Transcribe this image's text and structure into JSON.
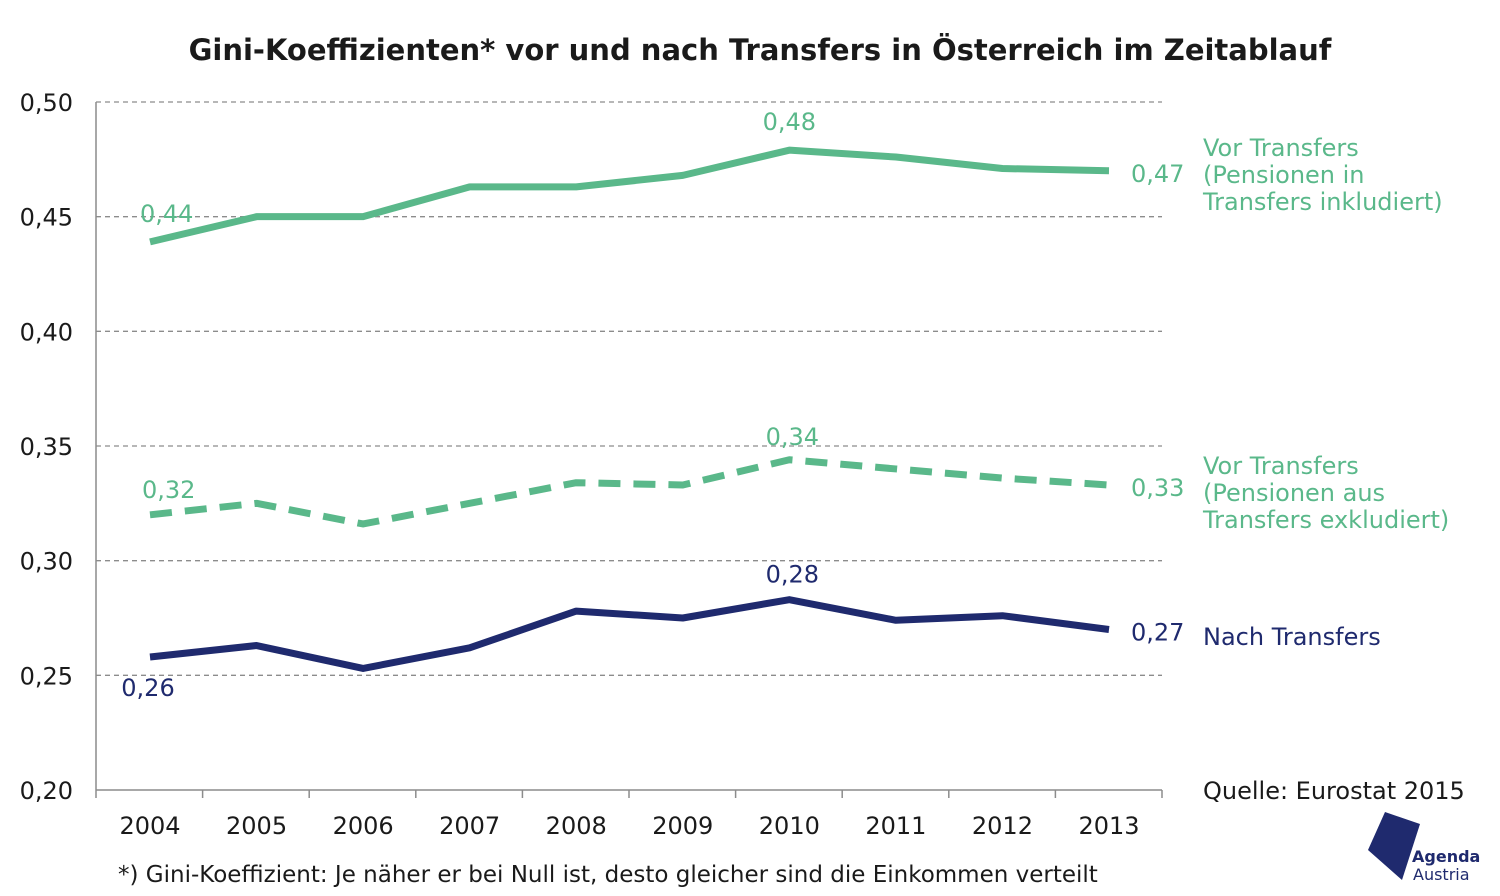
{
  "chart_data": {
    "type": "line",
    "title": "Gini-Koeffizienten* vor und nach Transfers in Österreich im Zeitablauf",
    "x": [
      "2004",
      "2005",
      "2006",
      "2007",
      "2008",
      "2009",
      "2010",
      "2011",
      "2012",
      "2013"
    ],
    "y_ticks": [
      "0,20",
      "0,25",
      "0,30",
      "0,35",
      "0,40",
      "0,45",
      "0,50"
    ],
    "ylim": [
      0.2,
      0.5
    ],
    "grid": "horizontal dashed",
    "series": [
      {
        "name_lines": [
          "Vor Transfers",
          "(Pensionen in",
          "Transfers inkludiert)"
        ],
        "color": "#5ab88a",
        "style": "solid",
        "values": [
          0.439,
          0.45,
          0.45,
          0.463,
          0.463,
          0.468,
          0.479,
          0.476,
          0.471,
          0.47
        ],
        "data_labels": [
          {
            "index": 0,
            "text": "0,44"
          },
          {
            "index": 6,
            "text": "0,48"
          },
          {
            "index": 9,
            "text": "0,47"
          }
        ]
      },
      {
        "name_lines": [
          "Vor Transfers",
          "(Pensionen aus",
          "Transfers exkludiert)"
        ],
        "color": "#5ab88a",
        "style": "dashed",
        "values": [
          0.32,
          0.325,
          0.316,
          0.325,
          0.334,
          0.333,
          0.344,
          0.34,
          0.336,
          0.333
        ],
        "data_labels": [
          {
            "index": 0,
            "text": "0,32"
          },
          {
            "index": 6,
            "text": "0,34"
          },
          {
            "index": 9,
            "text": "0,33"
          }
        ]
      },
      {
        "name_lines": [
          "Nach Transfers"
        ],
        "color": "#1f2a6e",
        "style": "solid",
        "values": [
          0.258,
          0.263,
          0.253,
          0.262,
          0.278,
          0.275,
          0.283,
          0.274,
          0.276,
          0.27
        ],
        "data_labels": [
          {
            "index": 0,
            "text": "0,26"
          },
          {
            "index": 6,
            "text": "0,28"
          },
          {
            "index": 9,
            "text": "0,27"
          }
        ]
      }
    ]
  },
  "source": "Quelle: Eurostat 2015",
  "footnote": "*) Gini-Koeffizient: Je näher er bei Null ist, desto gleicher sind die Einkommen verteilt",
  "logo": {
    "line1": "Agenda",
    "line2": "Austria",
    "color": "#1f2a6e"
  }
}
